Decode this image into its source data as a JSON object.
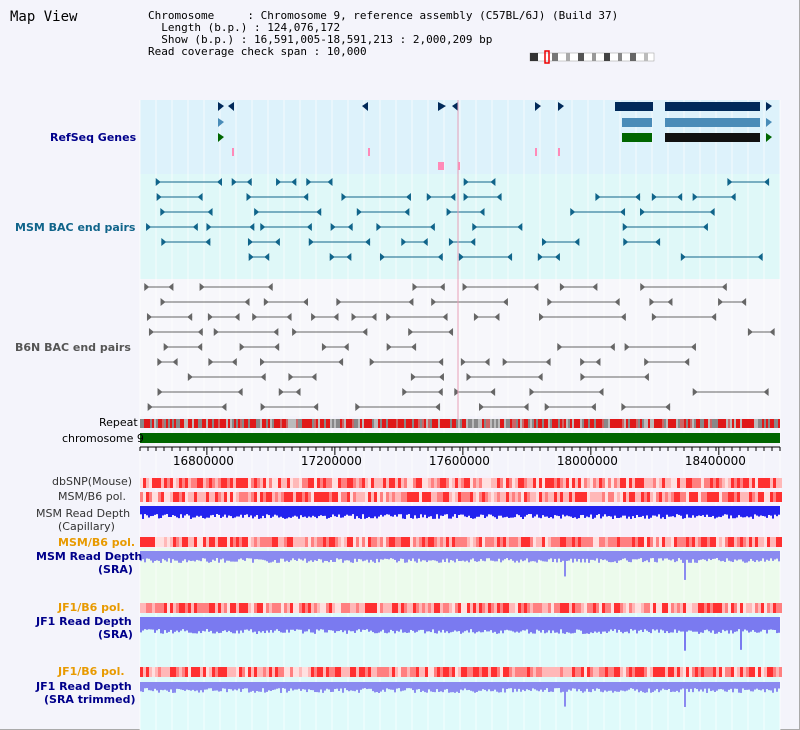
{
  "title": "Map View",
  "header": {
    "chromosome_label": "Chromosome",
    "chromosome_value": "Chromosome 9, reference assembly (C57BL/6J) (Build 37)",
    "length_label": "Length (b.p.)",
    "length_value": "124,076,172",
    "show_label": "Show (b.p.)",
    "show_value": "16,591,005-18,591,213 : 2,000,209 bp",
    "coverage_label": "Read coverage check span",
    "coverage_value": "10,000"
  },
  "tracks": {
    "refseq": "RefSeq Genes",
    "msm_bac": "MSM BAC end pairs",
    "b6n_bac": "B6N BAC end pairs",
    "repeat": "Repeat",
    "chromosome": "chromosome 9",
    "dbsnp": "dbSNP(Mouse)",
    "msm_b6_pol_1": "MSM/B6 pol.",
    "msm_read_cap_1": "MSM Read Depth",
    "msm_read_cap_2": "(Capillary)",
    "msm_b6_pol_2": "MSM/B6 pol.",
    "msm_read_sra_1": "MSM Read Depth",
    "msm_read_sra_2": "(SRA)",
    "jf1_b6_pol_1": "JF1/B6 pol.",
    "jf1_read_sra_1": "JF1 Read Depth",
    "jf1_read_sra_2": "(SRA)",
    "jf1_b6_pol_2": "JF1/B6 pol.",
    "jf1_read_trim_1": "JF1 Read Depth",
    "jf1_read_trim_2": "(SRA trimmed)"
  },
  "axis": {
    "ticks": [
      "16800000",
      "17200000",
      "17600000",
      "18000000",
      "18400000"
    ],
    "tick_values": [
      16800000,
      17200000,
      17600000,
      18000000,
      18400000
    ],
    "start": 16591005,
    "end": 18591213
  },
  "colors": {
    "refseq_bg": "#ddf2fb",
    "msm_bg": "#dff8f8",
    "gene_dark": "#002a5a",
    "gene_mid": "#4a8cb8",
    "gene_green": "#006600",
    "msm_pair": "#10648a",
    "b6n_pair": "#555555",
    "depth_blue": "#1f1fe6",
    "depth_light": "#8a8af0",
    "label_blue": "#00008b",
    "label_orange": "#e89a00"
  }
}
